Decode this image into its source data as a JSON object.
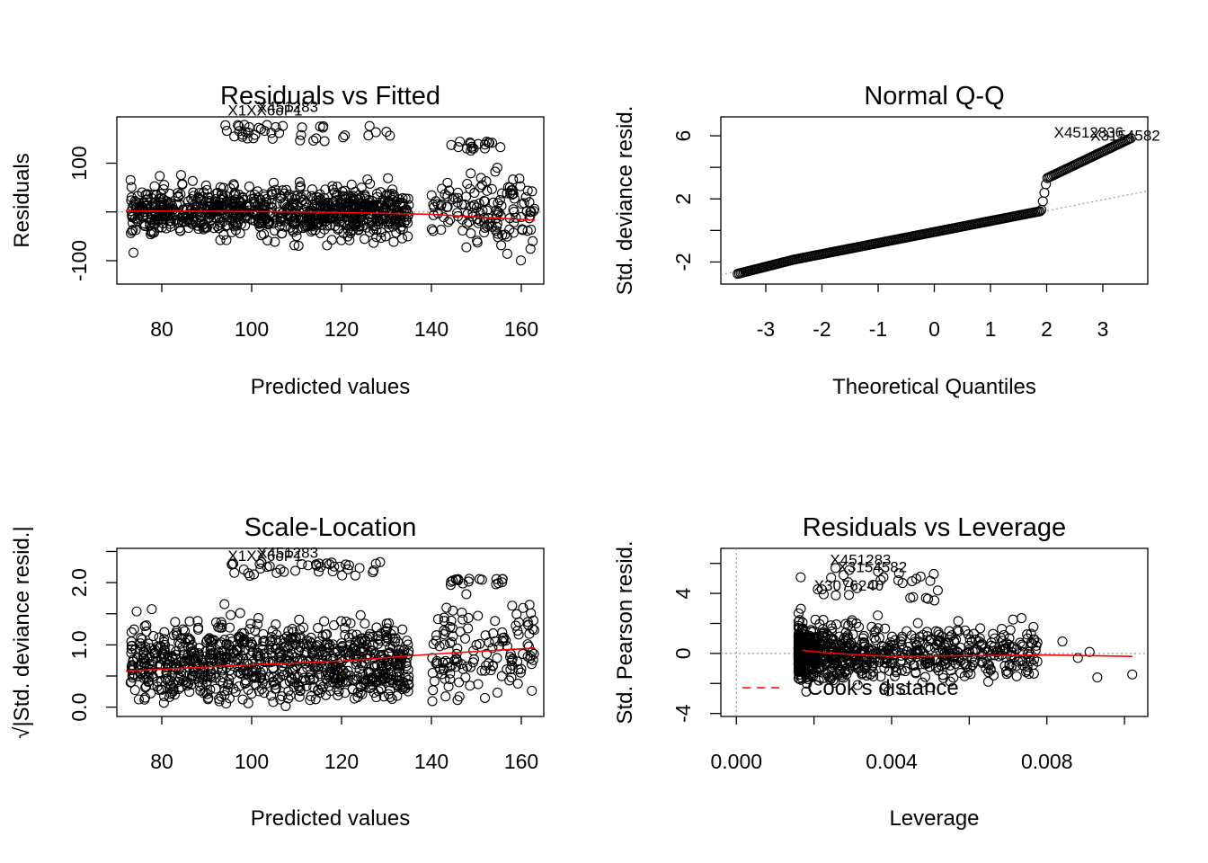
{
  "chart_data": [
    {
      "type": "scatter",
      "title": "Residuals vs Fitted",
      "xlabel": "Predicted values",
      "ylabel": "Residuals",
      "xlim": [
        70,
        165
      ],
      "ylim": [
        -148,
        195
      ],
      "xticks": [
        80,
        100,
        120,
        140,
        160
      ],
      "yticks": [
        -100,
        0,
        100
      ],
      "ytick_labels": [
        "-100",
        "",
        "100"
      ],
      "hline": 0,
      "point_labels": [
        {
          "text": "X1XX6oP1",
          "x": 103,
          "y": 198
        },
        {
          "text": "X451283",
          "x": 108,
          "y": 205
        }
      ],
      "smooth": {
        "x": [
          72,
          100,
          120,
          140,
          163
        ],
        "y": [
          2,
          1,
          -1,
          -5,
          -17
        ]
      }
    },
    {
      "type": "scatter",
      "title": "Normal Q-Q",
      "xlabel": "Theoretical Quantiles",
      "ylabel": "Std. deviance resid.",
      "xlim": [
        -3.8,
        3.8
      ],
      "ylim": [
        -3.4,
        7.2
      ],
      "xticks": [
        -3,
        -2,
        -1,
        0,
        1,
        2,
        3
      ],
      "yticks": [
        -2,
        0,
        2,
        4,
        6
      ],
      "ytick_labels": [
        "-2",
        "",
        "2",
        "",
        "6"
      ],
      "ref_line": {
        "x": [
          -3.8,
          3.8
        ],
        "y": [
          -2.8,
          2.5
        ]
      },
      "point_labels": [
        {
          "text": "X4512836",
          "x": 2.75,
          "y": 5.9
        },
        {
          "text": "X3154582",
          "x": 3.4,
          "y": 5.7
        }
      ]
    },
    {
      "type": "scatter",
      "title": "Scale-Location",
      "xlabel": "Predicted values",
      "ylabel": "√|Std. deviance resid.|",
      "xlim": [
        70,
        165
      ],
      "ylim": [
        -0.15,
        2.55
      ],
      "xticks": [
        80,
        100,
        120,
        140,
        160
      ],
      "yticks": [
        0.0,
        0.5,
        1.0,
        1.5,
        2.0,
        2.5
      ],
      "ytick_labels": [
        "0.0",
        "",
        "1.0",
        "",
        "2.0",
        ""
      ],
      "point_labels": [
        {
          "text": "X1XX6oP1",
          "x": 103,
          "y": 2.35
        },
        {
          "text": "X451283",
          "x": 108,
          "y": 2.4
        }
      ],
      "smooth": {
        "x": [
          72,
          100,
          120,
          140,
          163
        ],
        "y": [
          0.58,
          0.68,
          0.74,
          0.85,
          0.95
        ]
      }
    },
    {
      "type": "scatter",
      "title": "Residuals vs Leverage",
      "xlabel": "Leverage",
      "ylabel": "Std. Pearson resid.",
      "xlim": [
        -0.0004,
        0.0106
      ],
      "ylim": [
        -4.2,
        7.0
      ],
      "xticks": [
        0.0,
        0.002,
        0.004,
        0.006,
        0.008,
        0.01
      ],
      "xtick_labels": [
        "0.000",
        "",
        "0.004",
        "",
        "0.008",
        ""
      ],
      "yticks": [
        -4,
        -2,
        0,
        2,
        4,
        6
      ],
      "ytick_labels": [
        "-4",
        "",
        "0",
        "",
        "4",
        ""
      ],
      "hline": 0,
      "vline": 0,
      "legend": {
        "label": "Cook's distance",
        "position": "bottom-left"
      },
      "point_labels": [
        {
          "text": "X451283",
          "x": 0.0032,
          "y": 5.9
        },
        {
          "text": "X3154582",
          "x": 0.0035,
          "y": 5.4
        },
        {
          "text": "X3076240",
          "x": 0.0029,
          "y": 4.2
        }
      ],
      "smooth": {
        "x": [
          0.0017,
          0.0025,
          0.004,
          0.006,
          0.008,
          0.0102
        ],
        "y": [
          0.2,
          0.0,
          -0.2,
          -0.15,
          -0.1,
          -0.2
        ]
      }
    }
  ]
}
